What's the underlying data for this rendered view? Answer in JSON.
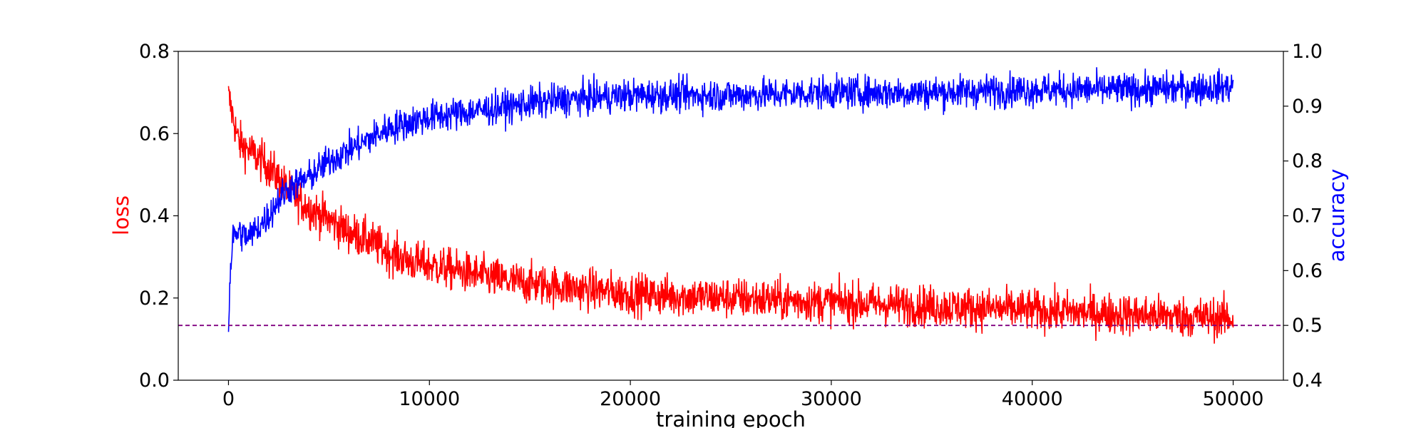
{
  "chart_data": {
    "type": "line",
    "title": "",
    "xlabel": "training epoch",
    "ylabel_left": "loss",
    "ylabel_right": "accuracy",
    "xlim": [
      -2500,
      52500
    ],
    "ylim_left": [
      0.0,
      0.8
    ],
    "ylim_right": [
      0.4,
      1.0
    ],
    "x_ticks": [
      0,
      10000,
      20000,
      30000,
      40000,
      50000
    ],
    "x_tick_labels": [
      "0",
      "10000",
      "20000",
      "30000",
      "40000",
      "50000"
    ],
    "y_left_ticks": [
      0.0,
      0.2,
      0.4,
      0.6,
      0.8
    ],
    "y_left_tick_labels": [
      "0.0",
      "0.2",
      "0.4",
      "0.6",
      "0.8"
    ],
    "y_right_ticks": [
      0.4,
      0.5,
      0.6,
      0.7,
      0.8,
      0.9,
      1.0
    ],
    "y_right_tick_labels": [
      "0.4",
      "0.5",
      "0.6",
      "0.7",
      "0.8",
      "0.9",
      "1.0"
    ],
    "grid": false,
    "legend": "none",
    "colors": {
      "loss": "#ff0000",
      "accuracy": "#0000ff",
      "baseline": "#800080"
    },
    "series": [
      {
        "axis": "left",
        "color": "#ff0000",
        "x": [
          0,
          500,
          1000,
          1500,
          2000,
          2500,
          3000,
          3500,
          4000,
          5000,
          6000,
          7000,
          8000,
          9000,
          10000,
          12000,
          14000,
          16000,
          18000,
          20000,
          22500,
          25000,
          27500,
          30000,
          32500,
          35000,
          37500,
          40000,
          42500,
          45000,
          47500,
          50000
        ],
        "values": [
          0.69,
          0.58,
          0.56,
          0.54,
          0.52,
          0.49,
          0.46,
          0.44,
          0.42,
          0.39,
          0.36,
          0.34,
          0.31,
          0.29,
          0.28,
          0.26,
          0.24,
          0.23,
          0.22,
          0.21,
          0.205,
          0.2,
          0.195,
          0.19,
          0.185,
          0.18,
          0.175,
          0.17,
          0.165,
          0.16,
          0.155,
          0.15
        ],
        "noise": 0.05
      },
      {
        "axis": "right",
        "color": "#0000ff",
        "x": [
          0,
          100,
          200,
          500,
          1000,
          1500,
          2000,
          2500,
          3000,
          4000,
          5000,
          6000,
          7000,
          8000,
          9000,
          10000,
          12000,
          14000,
          16000,
          18000,
          20000,
          25000,
          30000,
          35000,
          40000,
          45000,
          50000
        ],
        "values": [
          0.5,
          0.6,
          0.66,
          0.67,
          0.66,
          0.68,
          0.7,
          0.73,
          0.75,
          0.77,
          0.8,
          0.82,
          0.84,
          0.86,
          0.87,
          0.88,
          0.89,
          0.9,
          0.91,
          0.915,
          0.92,
          0.92,
          0.925,
          0.925,
          0.93,
          0.93,
          0.935
        ],
        "noise": 0.03
      }
    ],
    "reference_line": {
      "axis": "right",
      "y": 0.5,
      "style": "dashed",
      "color": "#800080"
    }
  }
}
